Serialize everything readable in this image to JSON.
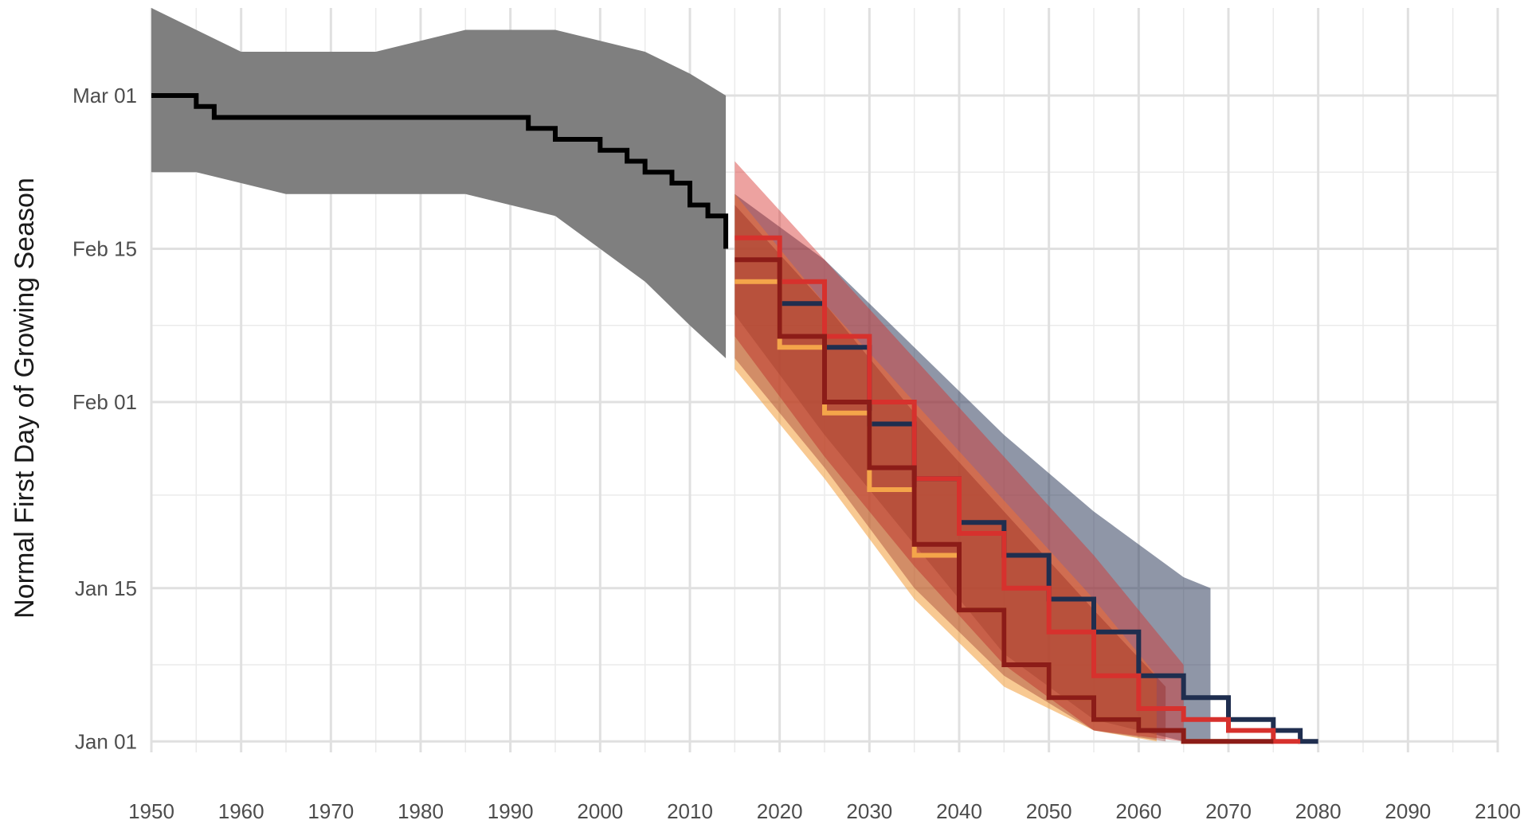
{
  "chart_data": {
    "type": "line",
    "title": "",
    "xlabel": "",
    "ylabel": "Normal First Day of Growing Season",
    "xlim": [
      1950,
      2100
    ],
    "ylim": [
      "Dec 31",
      "Mar 09"
    ],
    "x_ticks": [
      1950,
      1960,
      1970,
      1980,
      1990,
      2000,
      2010,
      2020,
      2030,
      2040,
      2050,
      2060,
      2070,
      2080,
      2090,
      2100
    ],
    "x_tick_labels": [
      "1950",
      "1960",
      "1970",
      "1980",
      "1990",
      "2000",
      "2010",
      "2020",
      "2030",
      "2040",
      "2050",
      "2060",
      "2070",
      "2080",
      "2090",
      "2100"
    ],
    "y_ticks": [
      "Jan 01",
      "Jan 15",
      "Feb 01",
      "Feb 15",
      "Mar 01"
    ],
    "y_tick_labels": [
      "Jan 01",
      "Jan 15",
      "Feb 01",
      "Feb 15",
      "Mar 01"
    ],
    "grid": true,
    "legend": "none",
    "colors": {
      "historical": "#000000",
      "historical_band": "#7f7f7f",
      "scenario_navy": "#1f2e4f",
      "scenario_red": "#d7312d",
      "scenario_orange": "#f4a54a",
      "scenario_darkred": "#8c1c18"
    },
    "bands": [
      {
        "color": "#7f7f7f",
        "opacity": 1.0,
        "x": [
          1950,
          1955,
          1960,
          1965,
          1975,
          1985,
          1995,
          2000,
          2005,
          2010,
          2014
        ],
        "low": [
          "Feb 22",
          "Feb 22",
          "Feb 21",
          "Feb 20",
          "Feb 20",
          "Feb 20",
          "Feb 18",
          "Feb 15",
          "Feb 12",
          "Feb 08",
          "Feb 05"
        ],
        "high": [
          "Mar 09",
          "Mar 07",
          "Mar 05",
          "Mar 05",
          "Mar 05",
          "Mar 07",
          "Mar 07",
          "Mar 06",
          "Mar 05",
          "Mar 03",
          "Feb 29"
        ]
      },
      {
        "color": "#1f2e4f",
        "opacity": 0.5,
        "x": [
          2015,
          2025,
          2035,
          2045,
          2055,
          2065,
          2068
        ],
        "low": [
          "Feb 09",
          "Jan 29",
          "Jan 19",
          "Jan 09",
          "Jan 03",
          "Jan 01",
          "Jan 01"
        ],
        "high": [
          "Feb 20",
          "Feb 14",
          "Feb 06",
          "Jan 29",
          "Jan 22",
          "Jan 16",
          "Jan 15"
        ]
      },
      {
        "color": "#f4a54a",
        "opacity": 0.6,
        "x": [
          2015,
          2025,
          2035,
          2045,
          2055,
          2062
        ],
        "low": [
          "Feb 04",
          "Jan 25",
          "Jan 14",
          "Jan 06",
          "Jan 02",
          "Jan 01"
        ],
        "high": [
          "Feb 20",
          "Feb 10",
          "Feb 01",
          "Jan 23",
          "Jan 14",
          "Jan 07"
        ]
      },
      {
        "color": "#d7312d",
        "opacity": 0.45,
        "x": [
          2015,
          2025,
          2035,
          2045,
          2055,
          2065
        ],
        "low": [
          "Feb 07",
          "Jan 27",
          "Jan 17",
          "Jan 08",
          "Jan 02",
          "Jan 01"
        ],
        "high": [
          "Feb 23",
          "Feb 14",
          "Feb 05",
          "Jan 27",
          "Jan 18",
          "Jan 08"
        ]
      },
      {
        "color": "#8c1c18",
        "opacity": 0.35,
        "x": [
          2015,
          2025,
          2035,
          2045,
          2055,
          2063
        ],
        "low": [
          "Feb 05",
          "Jan 26",
          "Jan 15",
          "Jan 07",
          "Jan 02",
          "Jan 01"
        ],
        "high": [
          "Feb 19",
          "Feb 10",
          "Jan 31",
          "Jan 22",
          "Jan 13",
          "Jan 06"
        ]
      }
    ],
    "series": [
      {
        "color": "#000000",
        "x": [
          1950,
          1952,
          1955,
          1957,
          1960,
          1970,
          1980,
          1990,
          1992,
          1995,
          1997,
          2000,
          2003,
          2005,
          2008,
          2010,
          2012,
          2014
        ],
        "y": [
          "Mar 01",
          "Mar 01",
          "Feb 28",
          "Feb 27",
          "Feb 27",
          "Feb 27",
          "Feb 27",
          "Feb 27",
          "Feb 26",
          "Feb 25",
          "Feb 25",
          "Feb 24",
          "Feb 23",
          "Feb 22",
          "Feb 21",
          "Feb 19",
          "Feb 18",
          "Feb 15"
        ]
      },
      {
        "color": "#1f2e4f",
        "x": [
          2020,
          2025,
          2030,
          2035,
          2040,
          2045,
          2050,
          2055,
          2060,
          2065,
          2070,
          2075,
          2078,
          2080
        ],
        "y": [
          "Feb 10",
          "Feb 06",
          "Jan 30",
          "Jan 25",
          "Jan 21",
          "Jan 18",
          "Jan 14",
          "Jan 11",
          "Jan 07",
          "Jan 05",
          "Jan 03",
          "Jan 02",
          "Jan 01",
          "Jan 01"
        ]
      },
      {
        "color": "#d7312d",
        "x": [
          2015,
          2020,
          2025,
          2030,
          2035,
          2040,
          2045,
          2050,
          2055,
          2060,
          2065,
          2070,
          2075,
          2078
        ],
        "y": [
          "Feb 16",
          "Feb 12",
          "Feb 07",
          "Feb 01",
          "Jan 25",
          "Jan 20",
          "Jan 15",
          "Jan 11",
          "Jan 07",
          "Jan 04",
          "Jan 03",
          "Jan 02",
          "Jan 01",
          "Jan 01"
        ]
      },
      {
        "color": "#f4a54a",
        "x": [
          2015,
          2020,
          2025,
          2030,
          2035,
          2040,
          2045,
          2050,
          2055,
          2060,
          2065,
          2070
        ],
        "y": [
          "Feb 12",
          "Feb 06",
          "Jan 31",
          "Jan 24",
          "Jan 18",
          "Jan 13",
          "Jan 08",
          "Jan 05",
          "Jan 03",
          "Jan 02",
          "Jan 01",
          "Jan 01"
        ]
      },
      {
        "color": "#8c1c18",
        "x": [
          2015,
          2020,
          2025,
          2030,
          2035,
          2040,
          2045,
          2050,
          2055,
          2060,
          2065,
          2070,
          2075
        ],
        "y": [
          "Feb 14",
          "Feb 07",
          "Feb 01",
          "Jan 26",
          "Jan 19",
          "Jan 13",
          "Jan 08",
          "Jan 05",
          "Jan 03",
          "Jan 02",
          "Jan 01",
          "Jan 01",
          "Jan 01"
        ]
      }
    ]
  }
}
